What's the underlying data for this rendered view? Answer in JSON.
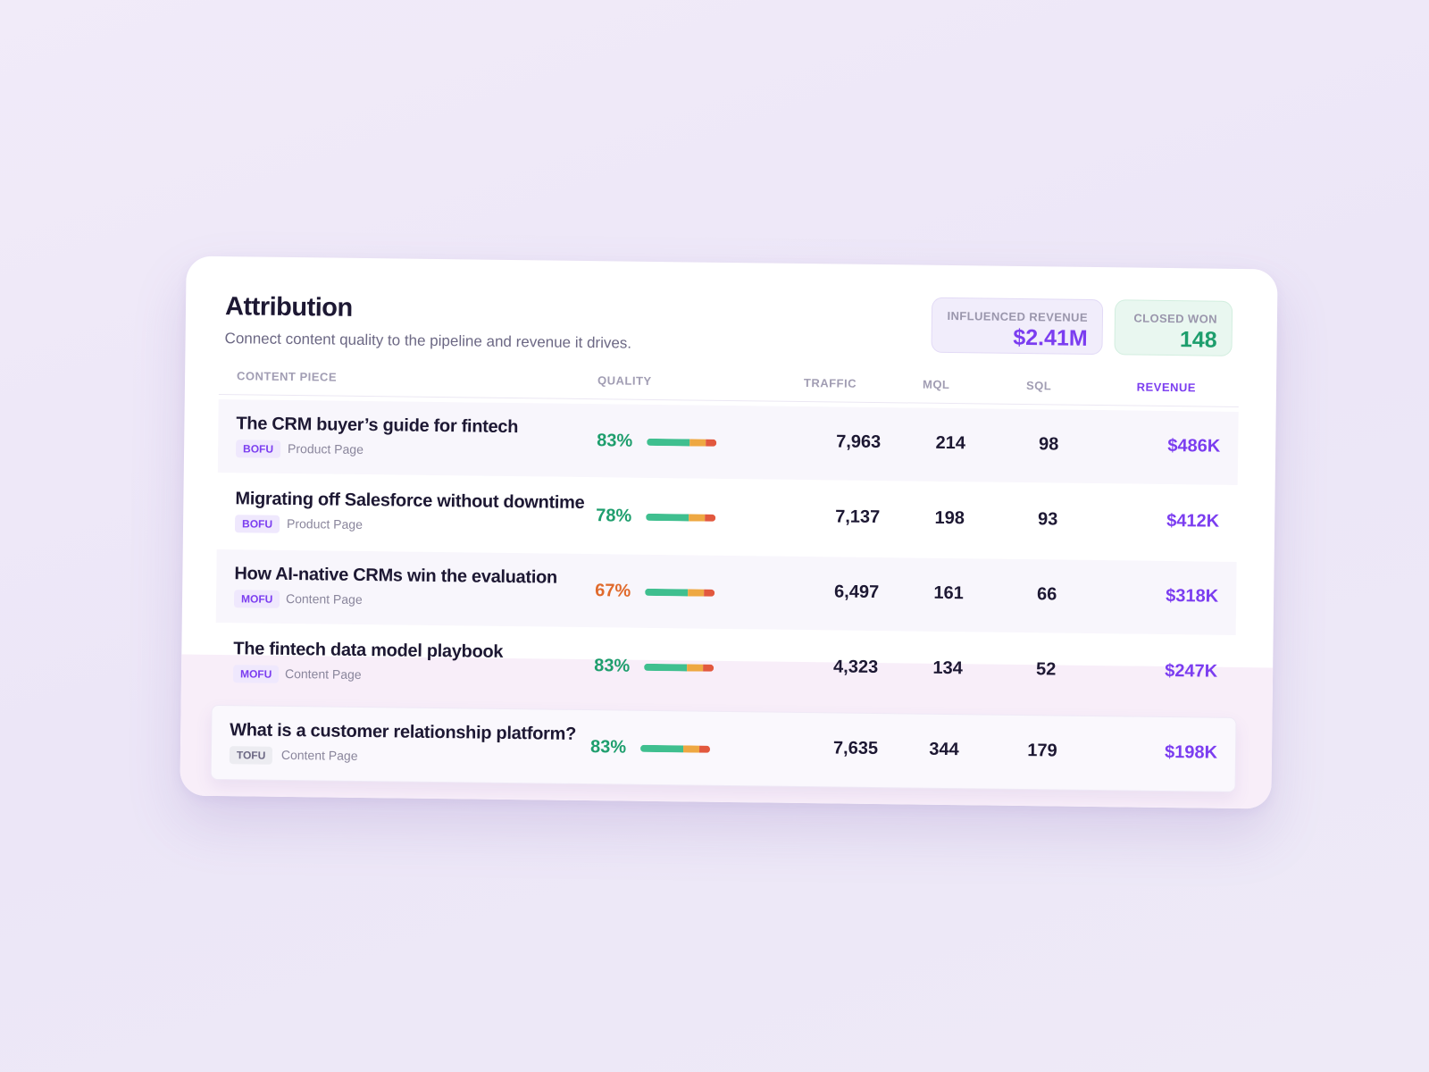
{
  "header": {
    "title": "Attribution",
    "subtitle": "Connect content quality to the pipeline and revenue it drives."
  },
  "kpis": [
    {
      "label": "INFLUENCED REVENUE",
      "value": "$2.41M"
    },
    {
      "label": "CLOSED WON",
      "value": "148"
    }
  ],
  "table": {
    "columns": [
      "CONTENT PIECE",
      "QUALITY",
      "TRAFFIC",
      "MQL",
      "SQL",
      "REVENUE"
    ],
    "rows": [
      {
        "title": "The CRM buyer’s guide for fintech",
        "stage": "BOFU",
        "page_type": "Product Page",
        "quality": "83%",
        "traffic": "7,963",
        "mql": "214",
        "sql": "98",
        "revenue": "$486K"
      },
      {
        "title": "Migrating off Salesforce without downtime",
        "stage": "BOFU",
        "page_type": "Product Page",
        "quality": "78%",
        "traffic": "7,137",
        "mql": "198",
        "sql": "93",
        "revenue": "$412K"
      },
      {
        "title": "How AI-native CRMs win the evaluation",
        "stage": "MOFU",
        "page_type": "Content Page",
        "quality": "67%",
        "traffic": "6,497",
        "mql": "161",
        "sql": "66",
        "revenue": "$318K"
      },
      {
        "title": "The fintech data model playbook",
        "stage": "MOFU",
        "page_type": "Content Page",
        "quality": "83%",
        "traffic": "4,323",
        "mql": "134",
        "sql": "52",
        "revenue": "$247K"
      },
      {
        "title": "What is a customer relationship platform?",
        "stage": "TOFU",
        "page_type": "Content Page",
        "quality": "83%",
        "traffic": "7,635",
        "mql": "344",
        "sql": "179",
        "revenue": "$198K"
      }
    ]
  }
}
